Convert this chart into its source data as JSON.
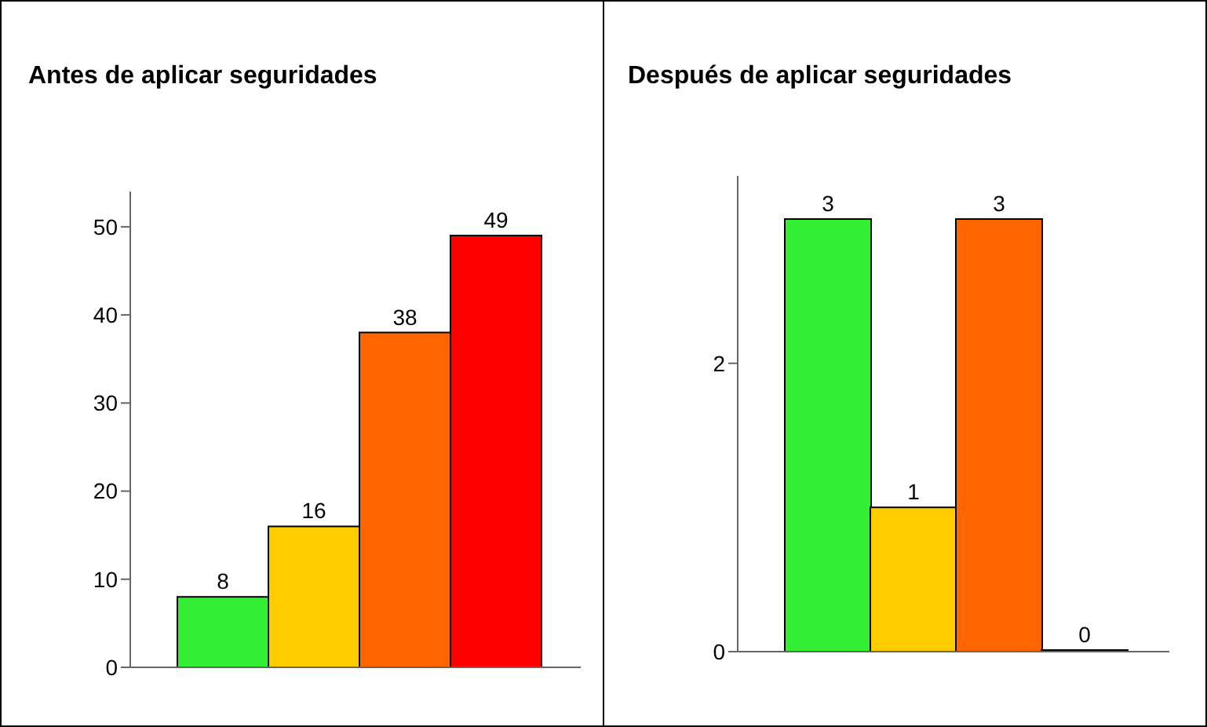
{
  "chart_data": [
    {
      "type": "bar",
      "title": "Antes de aplicar seguridades",
      "categories": [
        null,
        null,
        null,
        null
      ],
      "values": [
        8,
        16,
        38,
        49
      ],
      "colors": [
        "#33ee33",
        "#ffcc00",
        "#ff6600",
        "#ff0000"
      ],
      "ylim": [
        0,
        54
      ],
      "yticks": [
        0,
        10,
        20,
        30,
        40,
        50
      ],
      "data_labels": true,
      "grid": false,
      "legend": false
    },
    {
      "type": "bar",
      "title": "Después de aplicar seguridades",
      "categories": [
        null,
        null,
        null,
        null
      ],
      "values": [
        3,
        1,
        3,
        0
      ],
      "colors": [
        "#33ee33",
        "#ffcc00",
        "#ff6600",
        "#ff0000"
      ],
      "ylim": [
        0,
        3.3
      ],
      "yticks": [
        0,
        2
      ],
      "data_labels": true,
      "grid": false,
      "legend": false
    }
  ]
}
